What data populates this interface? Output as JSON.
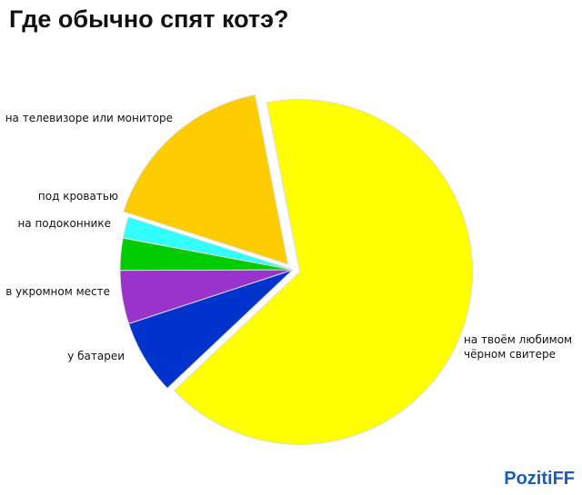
{
  "chart_data": {
    "type": "pie",
    "title": "Где обычно спят котэ?",
    "categories": [
      "на твоём любимом чёрном свитере",
      "у батареи",
      "в укромном месте",
      "на подоконнике",
      "под кроватью",
      "на телевизоре или мониторе"
    ],
    "values": [
      66,
      7,
      5,
      3,
      2,
      17
    ],
    "colors": [
      "#ffff00",
      "#0033cc",
      "#9933cc",
      "#00cc00",
      "#33ffff",
      "#ffcc00"
    ],
    "watermark": "PozitiFF"
  }
}
